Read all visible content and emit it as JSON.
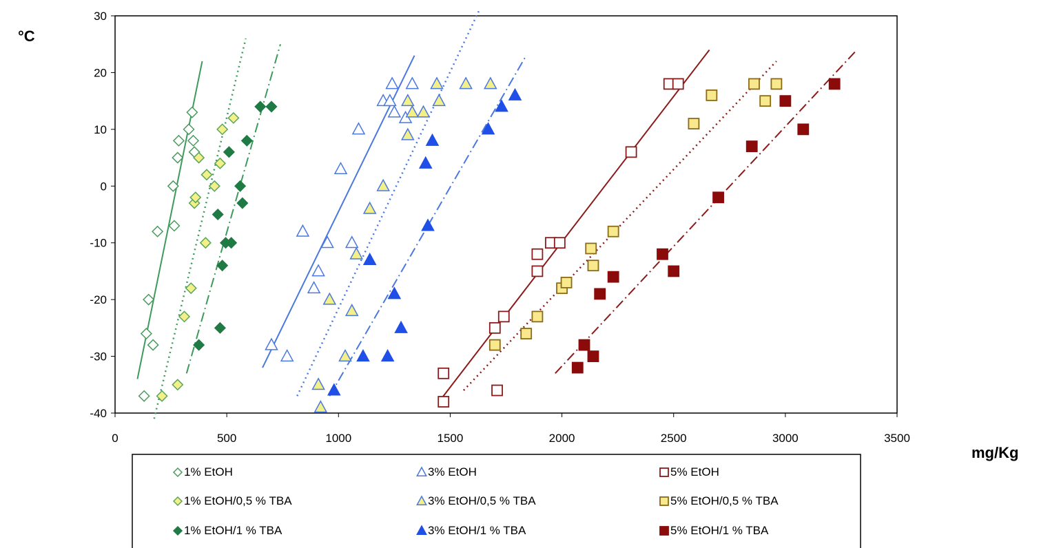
{
  "labels": {
    "y_unit": "°C",
    "x_unit": "mg/Kg"
  },
  "chart_data": {
    "type": "scatter",
    "xlabel": "mg/Kg",
    "ylabel": "°C",
    "xlim": [
      0,
      3500
    ],
    "ylim": [
      -40,
      30
    ],
    "xticks": [
      "0",
      "500",
      "1000",
      "1500",
      "2000",
      "2500",
      "3000",
      "3500"
    ],
    "yticks": [
      "30",
      "20",
      "10",
      "0",
      "-10",
      "-20",
      "-30",
      "-40"
    ],
    "grid": false,
    "legend_position": "bottom",
    "series": [
      {
        "name": "1% EtOH",
        "marker": "diamond",
        "filled": false,
        "color": "#4a9a5c",
        "fill": "#ffffff",
        "points": [
          [
            130,
            -37
          ],
          [
            140,
            -26
          ],
          [
            150,
            -20
          ],
          [
            170,
            -28
          ],
          [
            190,
            -8
          ],
          [
            260,
            0
          ],
          [
            265,
            -7
          ],
          [
            280,
            5
          ],
          [
            285,
            8
          ],
          [
            330,
            10
          ],
          [
            345,
            13
          ],
          [
            350,
            8
          ],
          [
            355,
            6
          ]
        ]
      },
      {
        "name": "1% EtOH/0,5 % TBA",
        "marker": "diamond",
        "filled": true,
        "color": "#5aa55a",
        "fill": "#f3f08a",
        "points": [
          [
            210,
            -37
          ],
          [
            280,
            -35
          ],
          [
            310,
            -23
          ],
          [
            340,
            -18
          ],
          [
            355,
            -3
          ],
          [
            360,
            -2
          ],
          [
            375,
            5
          ],
          [
            405,
            -10
          ],
          [
            410,
            2
          ],
          [
            445,
            0
          ],
          [
            470,
            4
          ],
          [
            480,
            10
          ],
          [
            530,
            12
          ]
        ]
      },
      {
        "name": "1% EtOH/1 % TBA",
        "marker": "diamond",
        "filled": true,
        "color": "#1f7a44",
        "fill": "#1f7a44",
        "points": [
          [
            375,
            -28
          ],
          [
            460,
            -5
          ],
          [
            470,
            -25
          ],
          [
            480,
            -14
          ],
          [
            495,
            -10
          ],
          [
            510,
            6
          ],
          [
            520,
            -10
          ],
          [
            560,
            0
          ],
          [
            570,
            -3
          ],
          [
            590,
            8
          ],
          [
            650,
            14
          ],
          [
            700,
            14
          ]
        ]
      },
      {
        "name": "3% EtOH",
        "marker": "triangle",
        "filled": false,
        "color": "#4a78e0",
        "fill": "#ffffff",
        "points": [
          [
            700,
            -28
          ],
          [
            770,
            -30
          ],
          [
            840,
            -8
          ],
          [
            890,
            -18
          ],
          [
            910,
            -15
          ],
          [
            950,
            -10
          ],
          [
            1010,
            3
          ],
          [
            1060,
            -10
          ],
          [
            1090,
            10
          ],
          [
            1200,
            15
          ],
          [
            1230,
            15
          ],
          [
            1240,
            18
          ],
          [
            1250,
            13
          ],
          [
            1300,
            12
          ],
          [
            1330,
            18
          ]
        ]
      },
      {
        "name": "3% EtOH/0,5 % TBA",
        "marker": "triangle",
        "filled": true,
        "color": "#4a78e0",
        "fill": "#f3f08a",
        "points": [
          [
            910,
            -35
          ],
          [
            920,
            -39
          ],
          [
            960,
            -20
          ],
          [
            1030,
            -30
          ],
          [
            1060,
            -22
          ],
          [
            1080,
            -12
          ],
          [
            1140,
            -4
          ],
          [
            1200,
            0
          ],
          [
            1310,
            15
          ],
          [
            1310,
            9
          ],
          [
            1330,
            13
          ],
          [
            1380,
            13
          ],
          [
            1440,
            18
          ],
          [
            1450,
            15
          ],
          [
            1570,
            18
          ],
          [
            1680,
            18
          ]
        ]
      },
      {
        "name": "3% EtOH/1 % TBA",
        "marker": "triangle",
        "filled": true,
        "color": "#1f4fe6",
        "fill": "#1f4fe6",
        "points": [
          [
            980,
            -36
          ],
          [
            1110,
            -30
          ],
          [
            1140,
            -13
          ],
          [
            1220,
            -30
          ],
          [
            1250,
            -19
          ],
          [
            1280,
            -25
          ],
          [
            1390,
            4
          ],
          [
            1400,
            -7
          ],
          [
            1420,
            8
          ],
          [
            1670,
            10
          ],
          [
            1730,
            14
          ],
          [
            1790,
            16
          ]
        ]
      },
      {
        "name": "5% EtOH",
        "marker": "square",
        "filled": false,
        "color": "#8b1a1a",
        "fill": "#ffffff",
        "points": [
          [
            1470,
            -33
          ],
          [
            1470,
            -38
          ],
          [
            1700,
            -25
          ],
          [
            1710,
            -36
          ],
          [
            1740,
            -23
          ],
          [
            1890,
            -15
          ],
          [
            1890,
            -12
          ],
          [
            1950,
            -10
          ],
          [
            1990,
            -10
          ],
          [
            2310,
            6
          ],
          [
            2480,
            18
          ],
          [
            2520,
            18
          ]
        ]
      },
      {
        "name": "5% EtOH/0,5 % TBA",
        "marker": "square",
        "filled": true,
        "color": "#8b6a1a",
        "fill": "#f8e98c",
        "points": [
          [
            1700,
            -28
          ],
          [
            1840,
            -26
          ],
          [
            1890,
            -23
          ],
          [
            2000,
            -18
          ],
          [
            2020,
            -17
          ],
          [
            2130,
            -11
          ],
          [
            2140,
            -14
          ],
          [
            2230,
            -8
          ],
          [
            2590,
            11
          ],
          [
            2670,
            16
          ],
          [
            2860,
            18
          ],
          [
            2910,
            15
          ],
          [
            2960,
            18
          ]
        ]
      },
      {
        "name": "5% EtOH/1 % TBA",
        "marker": "square",
        "filled": true,
        "color": "#8b0a0a",
        "fill": "#8b0a0a",
        "points": [
          [
            2070,
            -32
          ],
          [
            2100,
            -28
          ],
          [
            2140,
            -30
          ],
          [
            2170,
            -19
          ],
          [
            2230,
            -16
          ],
          [
            2450,
            -12
          ],
          [
            2500,
            -15
          ],
          [
            2700,
            -2
          ],
          [
            2850,
            7
          ],
          [
            3000,
            15
          ],
          [
            3080,
            10
          ],
          [
            3220,
            18
          ]
        ]
      }
    ],
    "fit_lines": [
      {
        "series": "1% EtOH",
        "style": "solid",
        "color": "#3c9a5a",
        "from": [
          100,
          -34
        ],
        "to": [
          390,
          22
        ]
      },
      {
        "series": "1% EtOH/0,5 % TBA",
        "style": "dotted",
        "color": "#3c9a5a",
        "from": [
          175,
          -41
        ],
        "to": [
          585,
          26
        ]
      },
      {
        "series": "1% EtOH/1 % TBA",
        "style": "dashdot",
        "color": "#3c9a5a",
        "from": [
          320,
          -33
        ],
        "to": [
          740,
          25
        ]
      },
      {
        "series": "3% EtOH",
        "style": "solid",
        "color": "#4a78e0",
        "from": [
          660,
          -32
        ],
        "to": [
          1340,
          23
        ]
      },
      {
        "series": "3% EtOH/0,5 % TBA",
        "style": "dotted",
        "color": "#4a78e0",
        "from": [
          815,
          -37
        ],
        "to": [
          1630,
          31
        ]
      },
      {
        "series": "3% EtOH/1 % TBA",
        "style": "dashdot",
        "color": "#4a78e0",
        "from": [
          960,
          -37
        ],
        "to": [
          1840,
          23
        ]
      },
      {
        "series": "5% EtOH",
        "style": "solid",
        "color": "#8b1a1a",
        "from": [
          1450,
          -38
        ],
        "to": [
          2660,
          24
        ]
      },
      {
        "series": "5% EtOH/0,5 % TBA",
        "style": "dotted",
        "color": "#8b1a1a",
        "from": [
          1560,
          -36
        ],
        "to": [
          2960,
          22
        ]
      },
      {
        "series": "5% EtOH/1 % TBA",
        "style": "dashdot",
        "color": "#8b1a1a",
        "from": [
          1970,
          -33
        ],
        "to": [
          3320,
          24
        ]
      }
    ]
  }
}
